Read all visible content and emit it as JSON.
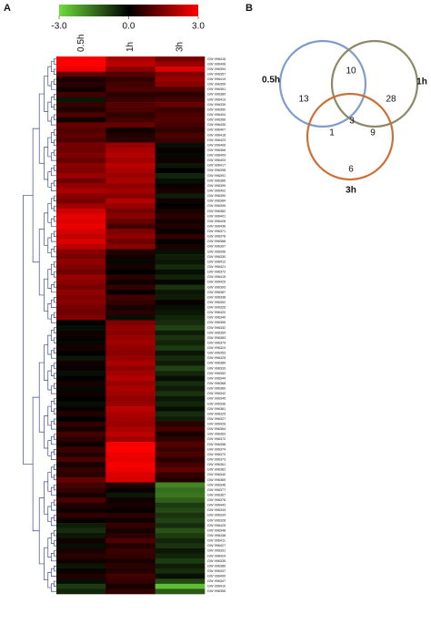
{
  "chart_data": [
    {
      "type": "heatmap",
      "panel_label": "A",
      "columns": [
        "0.5h",
        "1h",
        "3h"
      ],
      "vlim": [
        -3,
        3
      ],
      "colorbar_ticks": [
        {
          "value": -3,
          "label": "-3.0"
        },
        {
          "value": 0,
          "label": "0.0"
        },
        {
          "value": 3,
          "label": "3.0"
        }
      ],
      "colors": {
        "low": "#6edc3c",
        "mid": "#000000",
        "high": "#ff0000"
      },
      "rows": [
        "GW 996416",
        "GW 996408",
        "GW 996394",
        "GW 996357",
        "GW 996419",
        "GW 996359",
        "GW 996351",
        "GW 996380",
        "GW 996413",
        "GW 996339",
        "GW 996350",
        "GW 996404",
        "GW 996356",
        "GW 996435",
        "GW 996407",
        "GW 996418",
        "GW 996423",
        "GW 996406",
        "GW 996366",
        "GW 996409",
        "GW 996403",
        "GW 996417",
        "GW 996398",
        "GW 996391",
        "GW 996385",
        "GW 996399",
        "GW 996402",
        "GW 996390",
        "GW 996384",
        "GW 996395",
        "GW 996382",
        "GW 996401",
        "GW 996428",
        "GW 996436",
        "GW 996371",
        "GW 996378",
        "GW 996388",
        "GW 996397",
        "GW 996396",
        "GW 996330",
        "GW 996412",
        "GW 996421",
        "GW 996372",
        "GW 996415",
        "GW 996429",
        "GW 996393",
        "GW 996387",
        "GW 996338",
        "GW 996392",
        "GW 996326",
        "GW 996420",
        "GW 996349",
        "GW 996365",
        "GW 996332",
        "GW 996354",
        "GW 996383",
        "GW 996379",
        "GW 996324",
        "GW 996353",
        "GW 996325",
        "GW 996389",
        "GW 996333",
        "GW 996352",
        "GW 996344",
        "GW 996368",
        "GW 996360",
        "GW 996342",
        "GW 996345",
        "GW 996336",
        "GW 996381",
        "GW 996329",
        "GW 996327",
        "GW 996426",
        "GW 996364",
        "GW 996363",
        "GW 996372",
        "GW 996358",
        "GW 996374",
        "GW 996370",
        "GW 996373",
        "GW 996361",
        "GW 996362",
        "GW 996340",
        "GW 996369",
        "GW 996346",
        "GW 996377",
        "GW 996367",
        "GW 996376",
        "GW 996442",
        "GW 996343",
        "GW 996334",
        "GW 996328",
        "GW 996425",
        "GW 996348",
        "GW 996438",
        "GW 996411",
        "GW 996427",
        "GW 996331",
        "GW 996424",
        "GW 996335",
        "GW 996386",
        "GW 996337",
        "GW 996400",
        "GW 996347",
        "GW 996410",
        "GW 996355"
      ],
      "values": [
        [
          3.0,
          2.0,
          1.4
        ],
        [
          3.0,
          2.2,
          1.8
        ],
        [
          2.8,
          1.6,
          2.6
        ],
        [
          1.2,
          1.0,
          1.5
        ],
        [
          0.3,
          0.6,
          1.8
        ],
        [
          0.5,
          0.8,
          1.6
        ],
        [
          0.2,
          0.9,
          0.9
        ],
        [
          0.8,
          0.5,
          0.5
        ],
        [
          -0.3,
          0.7,
          0.8
        ],
        [
          0.6,
          1.0,
          1.2
        ],
        [
          0.4,
          0.9,
          0.7
        ],
        [
          0.9,
          0.6,
          0.9
        ],
        [
          0.2,
          0.8,
          1.0
        ],
        [
          1.2,
          1.2,
          0.8
        ],
        [
          1.0,
          0.2,
          0.6
        ],
        [
          1.1,
          0.4,
          0.9
        ],
        [
          0.9,
          0.5,
          0.7
        ],
        [
          1.4,
          1.8,
          -0.2
        ],
        [
          1.3,
          2.0,
          0.1
        ],
        [
          1.5,
          2.1,
          -0.1
        ],
        [
          1.2,
          1.9,
          0.2
        ],
        [
          1.6,
          2.2,
          -0.3
        ],
        [
          1.5,
          2.0,
          0.0
        ],
        [
          1.8,
          1.8,
          -0.5
        ],
        [
          1.3,
          2.0,
          -0.2
        ],
        [
          1.7,
          1.7,
          0.1
        ],
        [
          2.0,
          1.9,
          0.3
        ],
        [
          1.6,
          1.6,
          -0.4
        ],
        [
          1.4,
          2.1,
          0.2
        ],
        [
          1.9,
          1.8,
          0.0
        ],
        [
          2.4,
          1.4,
          0.3
        ],
        [
          2.7,
          1.6,
          0.5
        ],
        [
          2.6,
          1.2,
          0.2
        ],
        [
          2.8,
          0.8,
          0.4
        ],
        [
          2.5,
          1.5,
          0.1
        ],
        [
          2.3,
          1.7,
          0.6
        ],
        [
          2.6,
          1.3,
          0.0
        ],
        [
          2.2,
          1.6,
          0.3
        ],
        [
          1.6,
          0.4,
          -0.2
        ],
        [
          1.4,
          0.2,
          -0.4
        ],
        [
          1.7,
          -0.1,
          -0.3
        ],
        [
          1.5,
          0.3,
          -0.6
        ],
        [
          1.3,
          0.0,
          -0.2
        ],
        [
          1.8,
          0.5,
          -0.5
        ],
        [
          1.6,
          0.2,
          -0.1
        ],
        [
          1.4,
          0.6,
          -0.7
        ],
        [
          1.7,
          0.1,
          -0.3
        ],
        [
          1.5,
          0.8,
          -0.4
        ],
        [
          1.6,
          0.6,
          0.1
        ],
        [
          1.4,
          0.3,
          -0.2
        ],
        [
          1.3,
          0.5,
          -0.3
        ],
        [
          1.5,
          -0.2,
          -0.5
        ],
        [
          0.0,
          1.5,
          -0.6
        ],
        [
          -0.2,
          1.7,
          -0.9
        ],
        [
          0.2,
          1.6,
          -0.4
        ],
        [
          0.1,
          1.8,
          -0.7
        ],
        [
          -0.1,
          1.9,
          -0.5
        ],
        [
          0.3,
          1.7,
          -0.8
        ],
        [
          0.0,
          1.6,
          -0.3
        ],
        [
          -0.3,
          1.8,
          -0.6
        ],
        [
          0.2,
          2.0,
          -0.4
        ],
        [
          0.1,
          1.7,
          -0.9
        ],
        [
          -0.2,
          1.9,
          -0.5
        ],
        [
          0.0,
          2.1,
          -0.2
        ],
        [
          0.3,
          1.8,
          -0.6
        ],
        [
          -0.1,
          2.0,
          -0.4
        ],
        [
          0.2,
          1.9,
          -0.7
        ],
        [
          0.0,
          1.7,
          -0.3
        ],
        [
          -0.2,
          1.8,
          -0.5
        ],
        [
          0.1,
          2.2,
          -0.2
        ],
        [
          0.4,
          2.0,
          -0.6
        ],
        [
          0.0,
          1.9,
          -0.4
        ],
        [
          0.6,
          1.8,
          0.5
        ],
        [
          0.3,
          2.0,
          0.8
        ],
        [
          0.8,
          2.2,
          0.3
        ],
        [
          0.5,
          1.9,
          0.6
        ],
        [
          0.2,
          2.9,
          1.0
        ],
        [
          0.7,
          3.0,
          0.7
        ],
        [
          0.4,
          2.8,
          0.9
        ],
        [
          0.9,
          2.7,
          0.5
        ],
        [
          0.3,
          2.9,
          0.8
        ],
        [
          0.6,
          2.8,
          1.1
        ],
        [
          0.5,
          2.6,
          0.6
        ],
        [
          1.2,
          2.5,
          0.4
        ],
        [
          0.8,
          0.4,
          -1.8
        ],
        [
          0.6,
          0.1,
          -1.5
        ],
        [
          0.3,
          -0.3,
          -1.6
        ],
        [
          0.9,
          0.2,
          -1.3
        ],
        [
          0.4,
          0.3,
          -0.8
        ],
        [
          0.2,
          0.1,
          -1.0
        ],
        [
          0.6,
          0.5,
          -0.7
        ],
        [
          0.1,
          0.2,
          -0.9
        ],
        [
          -0.4,
          0.6,
          -0.6
        ],
        [
          -0.6,
          0.3,
          -1.1
        ],
        [
          -0.3,
          0.5,
          -0.8
        ],
        [
          0.2,
          0.9,
          -0.5
        ],
        [
          -0.2,
          0.4,
          -0.7
        ],
        [
          0.3,
          0.7,
          -0.3
        ],
        [
          0.5,
          0.6,
          -0.5
        ],
        [
          0.2,
          0.3,
          -0.8
        ],
        [
          -0.3,
          0.5,
          -0.4
        ],
        [
          0.1,
          0.4,
          -0.6
        ],
        [
          0.4,
          0.8,
          -0.2
        ],
        [
          -0.2,
          0.6,
          -1.0
        ],
        [
          -0.8,
          0.3,
          -2.6
        ],
        [
          -0.5,
          0.6,
          -1.2
        ]
      ]
    },
    {
      "type": "venn",
      "panel_label": "B",
      "sets": [
        {
          "name": "0.5h",
          "color": "#7f9ccc"
        },
        {
          "name": "1h",
          "color": "#8c8a66"
        },
        {
          "name": "3h",
          "color": "#cc7038"
        }
      ],
      "regions": [
        {
          "sets": [
            "0.5h"
          ],
          "value": 13
        },
        {
          "sets": [
            "1h"
          ],
          "value": 28
        },
        {
          "sets": [
            "3h"
          ],
          "value": 6
        },
        {
          "sets": [
            "0.5h",
            "1h"
          ],
          "value": 10
        },
        {
          "sets": [
            "0.5h",
            "3h"
          ],
          "value": 1
        },
        {
          "sets": [
            "1h",
            "3h"
          ],
          "value": 9
        },
        {
          "sets": [
            "0.5h",
            "1h",
            "3h"
          ],
          "value": 3
        }
      ]
    }
  ]
}
